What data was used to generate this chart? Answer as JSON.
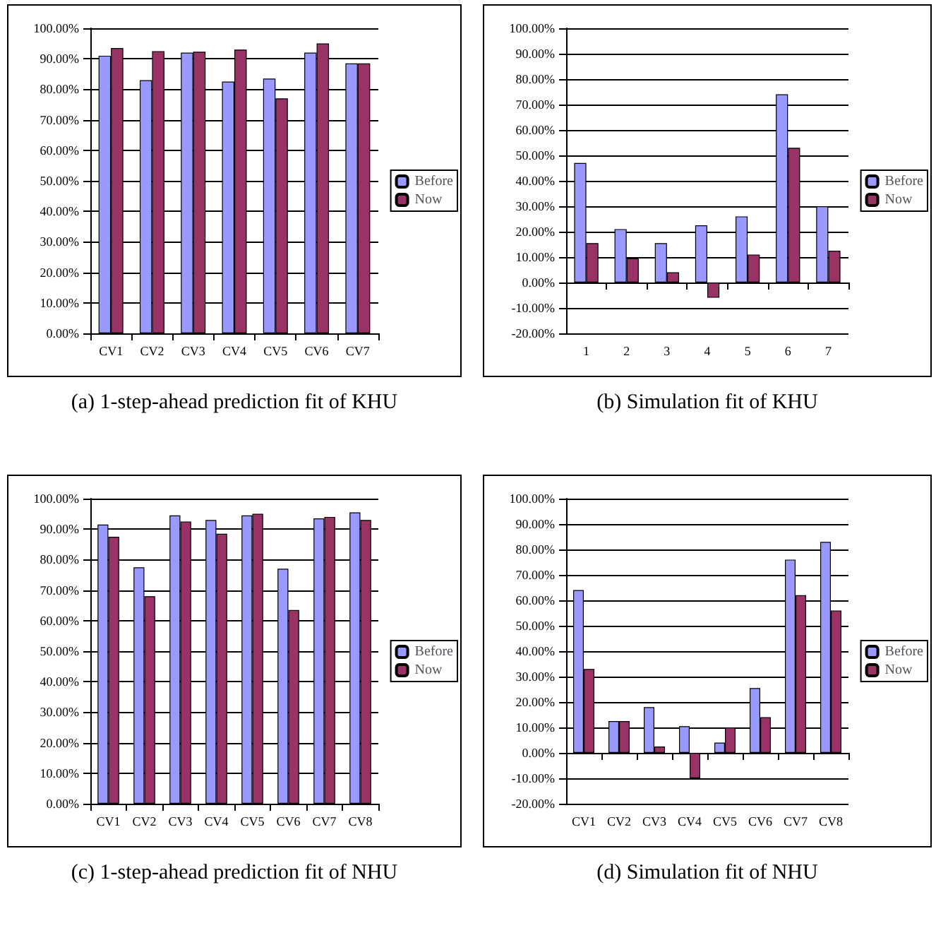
{
  "chart_data": [
    {
      "type": "bar",
      "title": "(a) 1-step-ahead prediction fit of KHU",
      "categories": [
        "CV1",
        "CV2",
        "CV3",
        "CV4",
        "CV5",
        "CV6",
        "CV7"
      ],
      "series": [
        {
          "name": "Before",
          "color": "#9999ff",
          "values": [
            91,
            83,
            92,
            82.5,
            83.5,
            92,
            88.5
          ]
        },
        {
          "name": "Now",
          "color": "#993366",
          "values": [
            93.5,
            92.5,
            92.3,
            93,
            77,
            95,
            88.5
          ]
        }
      ],
      "ylim": [
        0,
        100
      ],
      "yticks": [
        {
          "value": 0,
          "label": "0.00%"
        },
        {
          "value": 10,
          "label": "10.00%"
        },
        {
          "value": 20,
          "label": "20.00%"
        },
        {
          "value": 30,
          "label": "30.00%"
        },
        {
          "value": 40,
          "label": "40.00%"
        },
        {
          "value": 50,
          "label": "50.00%"
        },
        {
          "value": 60,
          "label": "60.00%"
        },
        {
          "value": 70,
          "label": "70.00%"
        },
        {
          "value": 80,
          "label": "80.00%"
        },
        {
          "value": 90,
          "label": "90.00%"
        },
        {
          "value": 100,
          "label": "100.00%"
        }
      ],
      "grid": "y",
      "legend": "right"
    },
    {
      "type": "bar",
      "title": "(b) Simulation fit of KHU",
      "categories": [
        "1",
        "2",
        "3",
        "4",
        "5",
        "6",
        "7"
      ],
      "series": [
        {
          "name": "Before",
          "color": "#9999ff",
          "values": [
            47,
            21,
            15.5,
            22.5,
            26,
            74,
            30
          ]
        },
        {
          "name": "Now",
          "color": "#993366",
          "values": [
            15.5,
            9.5,
            4,
            -6,
            11,
            53,
            12.5
          ]
        }
      ],
      "ylim": [
        -20,
        100
      ],
      "yticks": [
        {
          "value": -20,
          "label": "-20.00%"
        },
        {
          "value": -10,
          "label": "-10.00%"
        },
        {
          "value": 0,
          "label": "0.00%"
        },
        {
          "value": 10,
          "label": "10.00%"
        },
        {
          "value": 20,
          "label": "20.00%"
        },
        {
          "value": 30,
          "label": "30.00%"
        },
        {
          "value": 40,
          "label": "40.00%"
        },
        {
          "value": 50,
          "label": "50.00%"
        },
        {
          "value": 60,
          "label": "60.00%"
        },
        {
          "value": 70,
          "label": "70.00%"
        },
        {
          "value": 80,
          "label": "80.00%"
        },
        {
          "value": 90,
          "label": "90.00%"
        },
        {
          "value": 100,
          "label": "100.00%"
        }
      ],
      "grid": "y",
      "legend": "right"
    },
    {
      "type": "bar",
      "title": "(c) 1-step-ahead prediction fit of NHU",
      "categories": [
        "CV1",
        "CV2",
        "CV3",
        "CV4",
        "CV5",
        "CV6",
        "CV7",
        "CV8"
      ],
      "series": [
        {
          "name": "Before",
          "color": "#9999ff",
          "values": [
            91.5,
            77.5,
            94.5,
            93,
            94.5,
            77,
            93.5,
            95.5
          ]
        },
        {
          "name": "Now",
          "color": "#993366",
          "values": [
            87.5,
            68,
            92.5,
            88.5,
            95,
            63.5,
            94,
            93
          ]
        }
      ],
      "ylim": [
        0,
        100
      ],
      "yticks": [
        {
          "value": 0,
          "label": "0.00%"
        },
        {
          "value": 10,
          "label": "10.00%"
        },
        {
          "value": 20,
          "label": "20.00%"
        },
        {
          "value": 30,
          "label": "30.00%"
        },
        {
          "value": 40,
          "label": "40.00%"
        },
        {
          "value": 50,
          "label": "50.00%"
        },
        {
          "value": 60,
          "label": "60.00%"
        },
        {
          "value": 70,
          "label": "70.00%"
        },
        {
          "value": 80,
          "label": "80.00%"
        },
        {
          "value": 90,
          "label": "90.00%"
        },
        {
          "value": 100,
          "label": "100.00%"
        }
      ],
      "grid": "y",
      "legend": "right"
    },
    {
      "type": "bar",
      "title": "(d) Simulation fit of NHU",
      "categories": [
        "CV1",
        "CV2",
        "CV3",
        "CV4",
        "CV5",
        "CV6",
        "CV7",
        "CV8"
      ],
      "series": [
        {
          "name": "Before",
          "color": "#9999ff",
          "values": [
            64,
            12.5,
            18,
            10.5,
            4,
            25.5,
            76,
            83
          ]
        },
        {
          "name": "Now",
          "color": "#993366",
          "values": [
            33,
            12.5,
            2.5,
            -10,
            10,
            14,
            62,
            56
          ]
        }
      ],
      "ylim": [
        -20,
        100
      ],
      "yticks": [
        {
          "value": -20,
          "label": "-20.00%"
        },
        {
          "value": -10,
          "label": "-10.00%"
        },
        {
          "value": 0,
          "label": "0.00%"
        },
        {
          "value": 10,
          "label": "10.00%"
        },
        {
          "value": 20,
          "label": "20.00%"
        },
        {
          "value": 30,
          "label": "30.00%"
        },
        {
          "value": 40,
          "label": "40.00%"
        },
        {
          "value": 50,
          "label": "50.00%"
        },
        {
          "value": 60,
          "label": "60.00%"
        },
        {
          "value": 70,
          "label": "70.00%"
        },
        {
          "value": 80,
          "label": "80.00%"
        },
        {
          "value": 90,
          "label": "90.00%"
        },
        {
          "value": 100,
          "label": "100.00%"
        }
      ],
      "grid": "y",
      "legend": "right"
    }
  ]
}
